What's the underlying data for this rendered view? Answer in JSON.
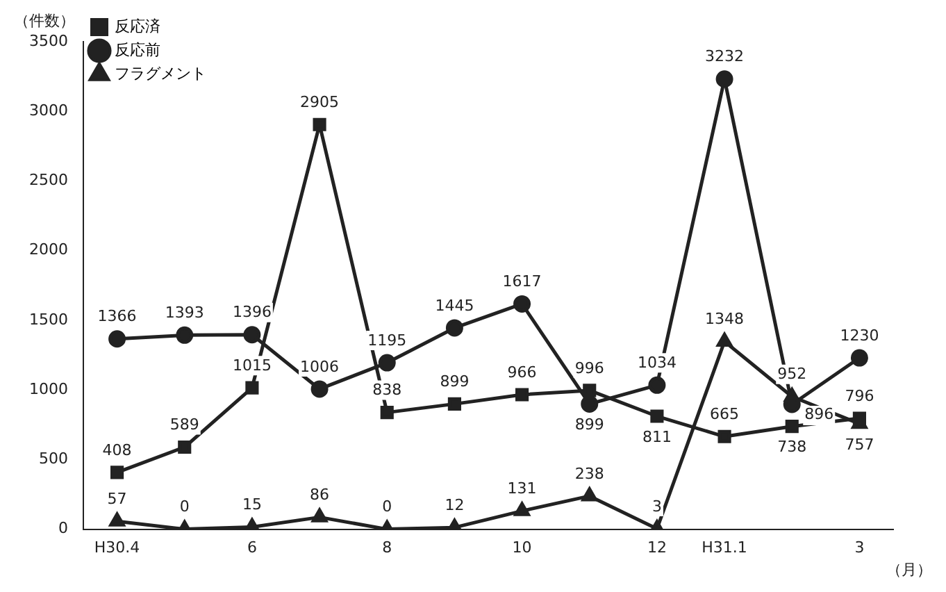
{
  "chart_data": {
    "type": "line",
    "ylabel": "（件数）",
    "xlabel": "（月）",
    "categories": [
      "H30.4",
      null,
      "6",
      null,
      "8",
      null,
      "10",
      null,
      "12",
      "H31.1",
      null,
      "3"
    ],
    "series": [
      {
        "name": "反応済",
        "color": "#222222",
        "marker": "square",
        "values": [
          408,
          589,
          1015,
          2905,
          838,
          899,
          966,
          996,
          811,
          665,
          738,
          796
        ]
      },
      {
        "name": "反応前",
        "color": "#222222",
        "marker": "circle",
        "values": [
          1366,
          1393,
          1396,
          1006,
          1195,
          1445,
          1617,
          899,
          1034,
          3232,
          896,
          1230
        ]
      },
      {
        "name": "フラグメント",
        "color": "#222222",
        "marker": "triangle",
        "values": [
          57,
          0,
          15,
          86,
          0,
          12,
          131,
          238,
          3,
          1348,
          952,
          757
        ]
      }
    ],
    "ylim": [
      0,
      3500
    ],
    "yticks": [
      0,
      500,
      1000,
      1500,
      2000,
      2500,
      3000,
      3500
    ],
    "grid": false,
    "legend": "top left",
    "data_labels": true
  }
}
